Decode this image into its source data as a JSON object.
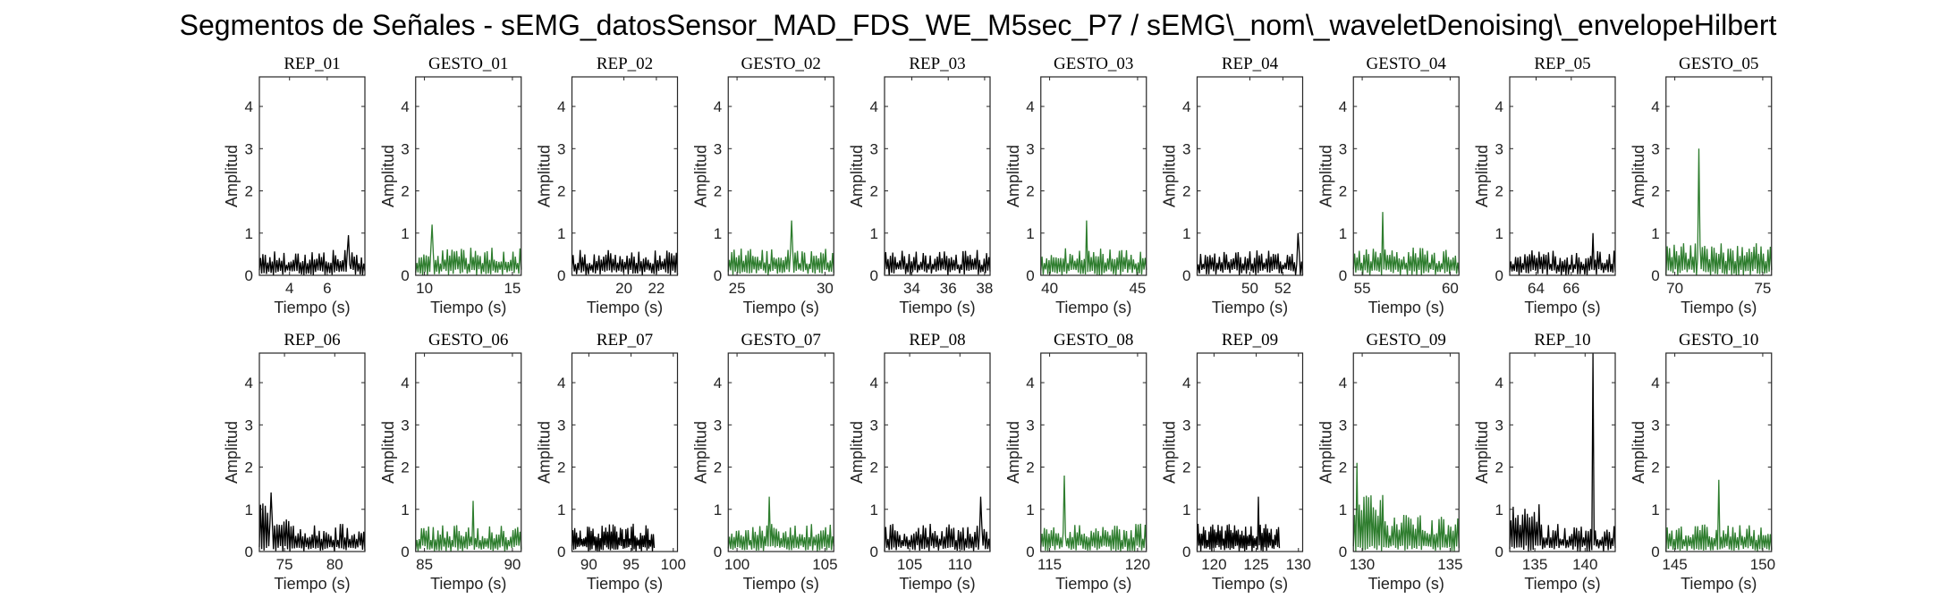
{
  "figure": {
    "title": "Segmentos de Señales - sEMG_datosSensor_MAD_FDS_WE_M5sec_P7 / sEMG\\_nom\\_waveletDenoising\\_envelopeHilbert"
  },
  "colors": {
    "rep": "#000000",
    "gesto": "#2e7d2e",
    "axes": "#262626"
  },
  "chart_data": [
    {
      "type": "line",
      "title": "REP_01",
      "kind": "rep",
      "xlabel": "Tiempo (s)",
      "ylabel": "Amplitud",
      "xlim": [
        2.4,
        8.0
      ],
      "ylim": [
        0,
        4.7
      ],
      "xticks": [
        4,
        6
      ],
      "yticks": [
        0,
        1,
        2,
        3,
        4
      ],
      "series": [
        {
          "name": "",
          "peak": 0.95,
          "base": 0.55
        }
      ]
    },
    {
      "type": "line",
      "title": "GESTO_01",
      "kind": "gesto",
      "xlabel": "Tiempo (s)",
      "ylabel": "Amplitud",
      "xlim": [
        9.5,
        15.5
      ],
      "ylim": [
        0,
        4.7
      ],
      "xticks": [
        10,
        15
      ],
      "yticks": [
        0,
        1,
        2,
        3,
        4
      ],
      "series": [
        {
          "name": "",
          "peak": 1.2,
          "base": 0.6
        }
      ]
    },
    {
      "type": "line",
      "title": "REP_02",
      "kind": "rep",
      "xlabel": "Tiempo (s)",
      "ylabel": "Amplitud",
      "xlim": [
        16.8,
        23.3
      ],
      "ylim": [
        0,
        4.7
      ],
      "xticks": [
        20,
        22
      ],
      "yticks": [
        0,
        1,
        2,
        3,
        4
      ],
      "series": [
        {
          "name": "",
          "peak": 0.95,
          "base": 0.55
        }
      ]
    },
    {
      "type": "line",
      "title": "GESTO_02",
      "kind": "gesto",
      "xlabel": "Tiempo (s)",
      "ylabel": "Amplitud",
      "xlim": [
        24.5,
        30.5
      ],
      "ylim": [
        0,
        4.7
      ],
      "xticks": [
        25,
        30
      ],
      "yticks": [
        0,
        1,
        2,
        3,
        4
      ],
      "series": [
        {
          "name": "",
          "peak": 1.3,
          "base": 0.6
        }
      ]
    },
    {
      "type": "line",
      "title": "REP_03",
      "kind": "rep",
      "xlabel": "Tiempo (s)",
      "ylabel": "Amplitud",
      "xlim": [
        32.5,
        38.3
      ],
      "ylim": [
        0,
        4.7
      ],
      "xticks": [
        34,
        36,
        38
      ],
      "yticks": [
        0,
        1,
        2,
        3,
        4
      ],
      "series": [
        {
          "name": "",
          "peak": 1.0,
          "base": 0.55
        }
      ]
    },
    {
      "type": "line",
      "title": "GESTO_03",
      "kind": "gesto",
      "xlabel": "Tiempo (s)",
      "ylabel": "Amplitud",
      "xlim": [
        39.5,
        45.5
      ],
      "ylim": [
        0,
        4.7
      ],
      "xticks": [
        40,
        45
      ],
      "yticks": [
        0,
        1,
        2,
        3,
        4
      ],
      "series": [
        {
          "name": "",
          "peak": 1.3,
          "base": 0.6
        }
      ]
    },
    {
      "type": "line",
      "title": "REP_04",
      "kind": "rep",
      "xlabel": "Tiempo (s)",
      "ylabel": "Amplitud",
      "xlim": [
        46.8,
        53.2
      ],
      "ylim": [
        0,
        4.7
      ],
      "xticks": [
        50,
        52
      ],
      "yticks": [
        0,
        1,
        2,
        3,
        4
      ],
      "series": [
        {
          "name": "",
          "peak": 1.0,
          "base": 0.55
        }
      ]
    },
    {
      "type": "line",
      "title": "GESTO_04",
      "kind": "gesto",
      "xlabel": "Tiempo (s)",
      "ylabel": "Amplitud",
      "xlim": [
        54.5,
        60.5
      ],
      "ylim": [
        0,
        4.7
      ],
      "xticks": [
        55,
        60
      ],
      "yticks": [
        0,
        1,
        2,
        3,
        4
      ],
      "series": [
        {
          "name": "",
          "peak": 1.5,
          "base": 0.6
        }
      ]
    },
    {
      "type": "line",
      "title": "REP_05",
      "kind": "rep",
      "xlabel": "Tiempo (s)",
      "ylabel": "Amplitud",
      "xlim": [
        62.5,
        68.5
      ],
      "ylim": [
        0,
        4.7
      ],
      "xticks": [
        64,
        66
      ],
      "yticks": [
        0,
        1,
        2,
        3,
        4
      ],
      "series": [
        {
          "name": "",
          "peak": 1.0,
          "base": 0.55
        }
      ]
    },
    {
      "type": "line",
      "title": "GESTO_05",
      "kind": "gesto",
      "xlabel": "Tiempo (s)",
      "ylabel": "Amplitud",
      "xlim": [
        69.5,
        75.5
      ],
      "ylim": [
        0,
        4.7
      ],
      "xticks": [
        70,
        75
      ],
      "yticks": [
        0,
        1,
        2,
        3,
        4
      ],
      "series": [
        {
          "name": "",
          "peak": 3.0,
          "base": 0.7
        }
      ]
    },
    {
      "type": "line",
      "title": "REP_06",
      "kind": "rep",
      "xlabel": "Tiempo (s)",
      "ylabel": "Amplitud",
      "xlim": [
        72.5,
        83.0
      ],
      "ylim": [
        0,
        4.7
      ],
      "xticks": [
        75,
        80
      ],
      "yticks": [
        0,
        1,
        2,
        3,
        4
      ],
      "series": [
        {
          "name": "",
          "peak": 1.4,
          "base": 0.6
        }
      ]
    },
    {
      "type": "line",
      "title": "GESTO_06",
      "kind": "gesto",
      "xlabel": "Tiempo (s)",
      "ylabel": "Amplitud",
      "xlim": [
        84.5,
        90.5
      ],
      "ylim": [
        0,
        4.7
      ],
      "xticks": [
        85,
        90
      ],
      "yticks": [
        0,
        1,
        2,
        3,
        4
      ],
      "series": [
        {
          "name": "",
          "peak": 1.2,
          "base": 0.6
        }
      ]
    },
    {
      "type": "line",
      "title": "REP_07",
      "kind": "rep",
      "xlabel": "Tiempo (s)",
      "ylabel": "Amplitud",
      "xlim": [
        88.0,
        100.5
      ],
      "ylim": [
        0,
        4.7
      ],
      "xticks": [
        90,
        95,
        100
      ],
      "yticks": [
        0,
        1,
        2,
        3,
        4
      ],
      "series": [
        {
          "name": "",
          "peak": 1.1,
          "base": 0.6
        }
      ]
    },
    {
      "type": "line",
      "title": "GESTO_07",
      "kind": "gesto",
      "xlabel": "Tiempo (s)",
      "ylabel": "Amplitud",
      "xlim": [
        99.5,
        105.5
      ],
      "ylim": [
        0,
        4.7
      ],
      "xticks": [
        100,
        105
      ],
      "yticks": [
        0,
        1,
        2,
        3,
        4
      ],
      "series": [
        {
          "name": "",
          "peak": 1.3,
          "base": 0.6
        }
      ]
    },
    {
      "type": "line",
      "title": "REP_08",
      "kind": "rep",
      "xlabel": "Tiempo (s)",
      "ylabel": "Amplitud",
      "xlim": [
        102.5,
        113.0
      ],
      "ylim": [
        0,
        4.7
      ],
      "xticks": [
        105,
        110
      ],
      "yticks": [
        0,
        1,
        2,
        3,
        4
      ],
      "series": [
        {
          "name": "",
          "peak": 1.3,
          "base": 0.6
        }
      ]
    },
    {
      "type": "line",
      "title": "GESTO_08",
      "kind": "gesto",
      "xlabel": "Tiempo (s)",
      "ylabel": "Amplitud",
      "xlim": [
        114.5,
        120.5
      ],
      "ylim": [
        0,
        4.7
      ],
      "xticks": [
        115,
        120
      ],
      "yticks": [
        0,
        1,
        2,
        3,
        4
      ],
      "series": [
        {
          "name": "",
          "peak": 1.8,
          "base": 0.6
        }
      ]
    },
    {
      "type": "line",
      "title": "REP_09",
      "kind": "rep",
      "xlabel": "Tiempo (s)",
      "ylabel": "Amplitud",
      "xlim": [
        118.0,
        130.5
      ],
      "ylim": [
        0,
        4.7
      ],
      "xticks": [
        120,
        125,
        130
      ],
      "yticks": [
        0,
        1,
        2,
        3,
        4
      ],
      "series": [
        {
          "name": "",
          "peak": 1.3,
          "base": 0.6
        }
      ]
    },
    {
      "type": "line",
      "title": "GESTO_09",
      "kind": "gesto",
      "xlabel": "Tiempo (s)",
      "ylabel": "Amplitud",
      "xlim": [
        129.5,
        135.5
      ],
      "ylim": [
        0,
        4.7
      ],
      "xticks": [
        130,
        135
      ],
      "yticks": [
        0,
        1,
        2,
        3,
        4
      ],
      "series": [
        {
          "name": "",
          "peak": 2.1,
          "base": 0.8
        }
      ]
    },
    {
      "type": "line",
      "title": "REP_10",
      "kind": "rep",
      "xlabel": "Tiempo (s)",
      "ylabel": "Amplitud",
      "xlim": [
        132.5,
        143.0
      ],
      "ylim": [
        0,
        4.7
      ],
      "xticks": [
        135,
        140
      ],
      "yticks": [
        0,
        1,
        2,
        3,
        4
      ],
      "series": [
        {
          "name": "",
          "peak": 4.7,
          "base": 0.6
        }
      ]
    },
    {
      "type": "line",
      "title": "GESTO_10",
      "kind": "gesto",
      "xlabel": "Tiempo (s)",
      "ylabel": "Amplitud",
      "xlim": [
        144.5,
        150.5
      ],
      "ylim": [
        0,
        4.7
      ],
      "xticks": [
        145,
        150
      ],
      "yticks": [
        0,
        1,
        2,
        3,
        4
      ],
      "series": [
        {
          "name": "",
          "peak": 1.7,
          "base": 0.6
        }
      ]
    }
  ]
}
